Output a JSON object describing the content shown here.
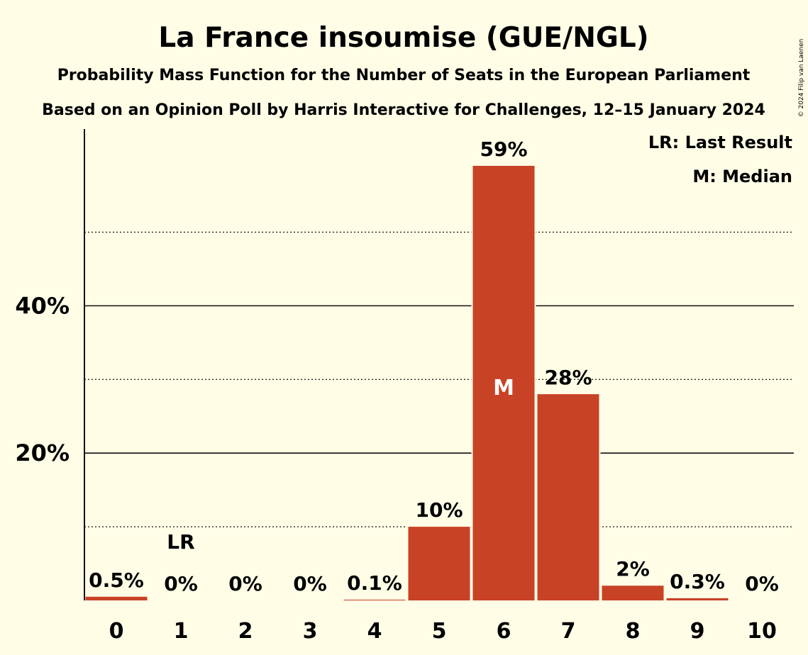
{
  "chart_data": {
    "type": "bar",
    "title": "La France insoumise (GUE/NGL)",
    "subtitle": "Probability Mass Function for the Number of Seats in the European Parliament",
    "subtitle2": "Based on an Opinion Poll by Harris Interactive for Challenges, 12–15 January 2024",
    "categories": [
      "0",
      "1",
      "2",
      "3",
      "4",
      "5",
      "6",
      "7",
      "8",
      "9",
      "10"
    ],
    "values": [
      0.5,
      0,
      0,
      0,
      0.1,
      10,
      59,
      28,
      2,
      0.3,
      0
    ],
    "value_labels": [
      "0.5%",
      "0%",
      "0%",
      "0%",
      "0.1%",
      "10%",
      "59%",
      "28%",
      "2%",
      "0.3%",
      "0%"
    ],
    "ylim": [
      0,
      64
    ],
    "y_ticks": [
      {
        "value": 20,
        "label": "20%"
      },
      {
        "value": 40,
        "label": "40%"
      }
    ],
    "y_minor_gridlines": [
      10,
      30,
      50
    ],
    "last_result_index": 1,
    "last_result_marker": "LR",
    "median_index": 6,
    "median_marker": "M",
    "legend": [
      "LR: Last Result",
      "M: Median"
    ],
    "legend_position": "top-right",
    "copyright": "© 2024 Filip van Laenen",
    "colors": {
      "bar": "#C84225",
      "background": "#FFFDE6",
      "text": "#111111",
      "median_text": "#FFFFFF"
    }
  }
}
